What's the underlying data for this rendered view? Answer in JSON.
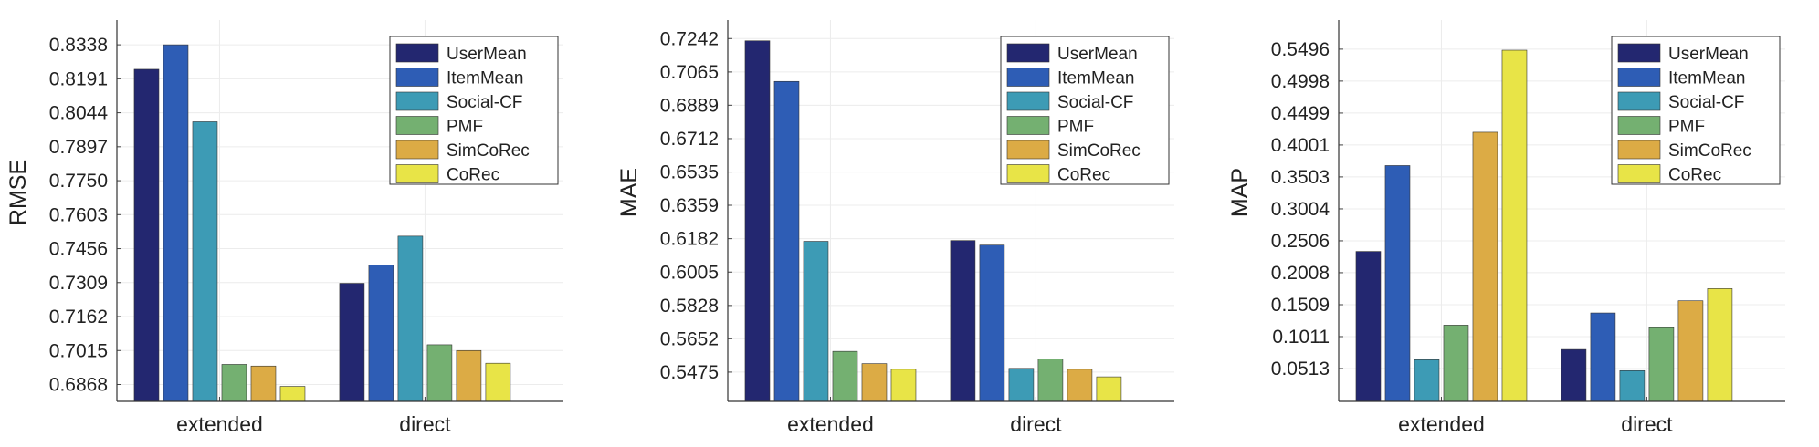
{
  "colors": {
    "UserMean": "#232770",
    "ItemMean": "#2e5db5",
    "Social-CF": "#3d9bb5",
    "PMF": "#74b071",
    "SimCoRec": "#dcab45",
    "CoRec": "#e8e447"
  },
  "chart_data": [
    {
      "type": "bar",
      "ylabel": "RMSE",
      "xlabel": "",
      "categories": [
        "extended",
        "direct"
      ],
      "yticks": [
        "0.6868",
        "0.7015",
        "0.7162",
        "0.7309",
        "0.7456",
        "0.7603",
        "0.7750",
        "0.7897",
        "0.8044",
        "0.8191",
        "0.8338"
      ],
      "ylim": [
        0.6795,
        0.8445
      ],
      "grid": true,
      "legend_position": "top-right",
      "series": [
        {
          "name": "UserMean",
          "values": [
            0.8232,
            0.7306
          ]
        },
        {
          "name": "ItemMean",
          "values": [
            0.8338,
            0.7385
          ]
        },
        {
          "name": "Social-CF",
          "values": [
            0.8005,
            0.751
          ]
        },
        {
          "name": "PMF",
          "values": [
            0.6955,
            0.704
          ]
        },
        {
          "name": "SimCoRec",
          "values": [
            0.6948,
            0.7015
          ]
        },
        {
          "name": "CoRec",
          "values": [
            0.686,
            0.696
          ]
        }
      ]
    },
    {
      "type": "bar",
      "ylabel": "MAE",
      "xlabel": "",
      "categories": [
        "extended",
        "direct"
      ],
      "yticks": [
        "0.5475",
        "0.5652",
        "0.5828",
        "0.6005",
        "0.6182",
        "0.6359",
        "0.6535",
        "0.6712",
        "0.6889",
        "0.7065",
        "0.7242"
      ],
      "ylim": [
        0.532,
        0.734
      ],
      "grid": true,
      "legend_position": "top-right",
      "series": [
        {
          "name": "UserMean",
          "values": [
            0.723,
            0.6172
          ]
        },
        {
          "name": "ItemMean",
          "values": [
            0.7015,
            0.6148
          ]
        },
        {
          "name": "Social-CF",
          "values": [
            0.6168,
            0.5495
          ]
        },
        {
          "name": "PMF",
          "values": [
            0.5585,
            0.5545
          ]
        },
        {
          "name": "SimCoRec",
          "values": [
            0.552,
            0.549
          ]
        },
        {
          "name": "CoRec",
          "values": [
            0.549,
            0.545
          ]
        }
      ]
    },
    {
      "type": "bar",
      "ylabel": "MAP",
      "xlabel": "",
      "categories": [
        "extended",
        "direct"
      ],
      "yticks": [
        "0.0513",
        "0.1011",
        "0.1509",
        "0.2008",
        "0.2506",
        "0.3004",
        "0.3503",
        "0.4001",
        "0.4499",
        "0.4998",
        "0.5496"
      ],
      "ylim": [
        0.0,
        0.595
      ],
      "grid": true,
      "legend_position": "top-right",
      "series": [
        {
          "name": "UserMean",
          "values": [
            0.234,
            0.081
          ]
        },
        {
          "name": "ItemMean",
          "values": [
            0.368,
            0.138
          ]
        },
        {
          "name": "Social-CF",
          "values": [
            0.065,
            0.048
          ]
        },
        {
          "name": "PMF",
          "values": [
            0.119,
            0.115
          ]
        },
        {
          "name": "SimCoRec",
          "values": [
            0.42,
            0.157
          ]
        },
        {
          "name": "CoRec",
          "values": [
            0.548,
            0.176
          ]
        }
      ]
    }
  ]
}
